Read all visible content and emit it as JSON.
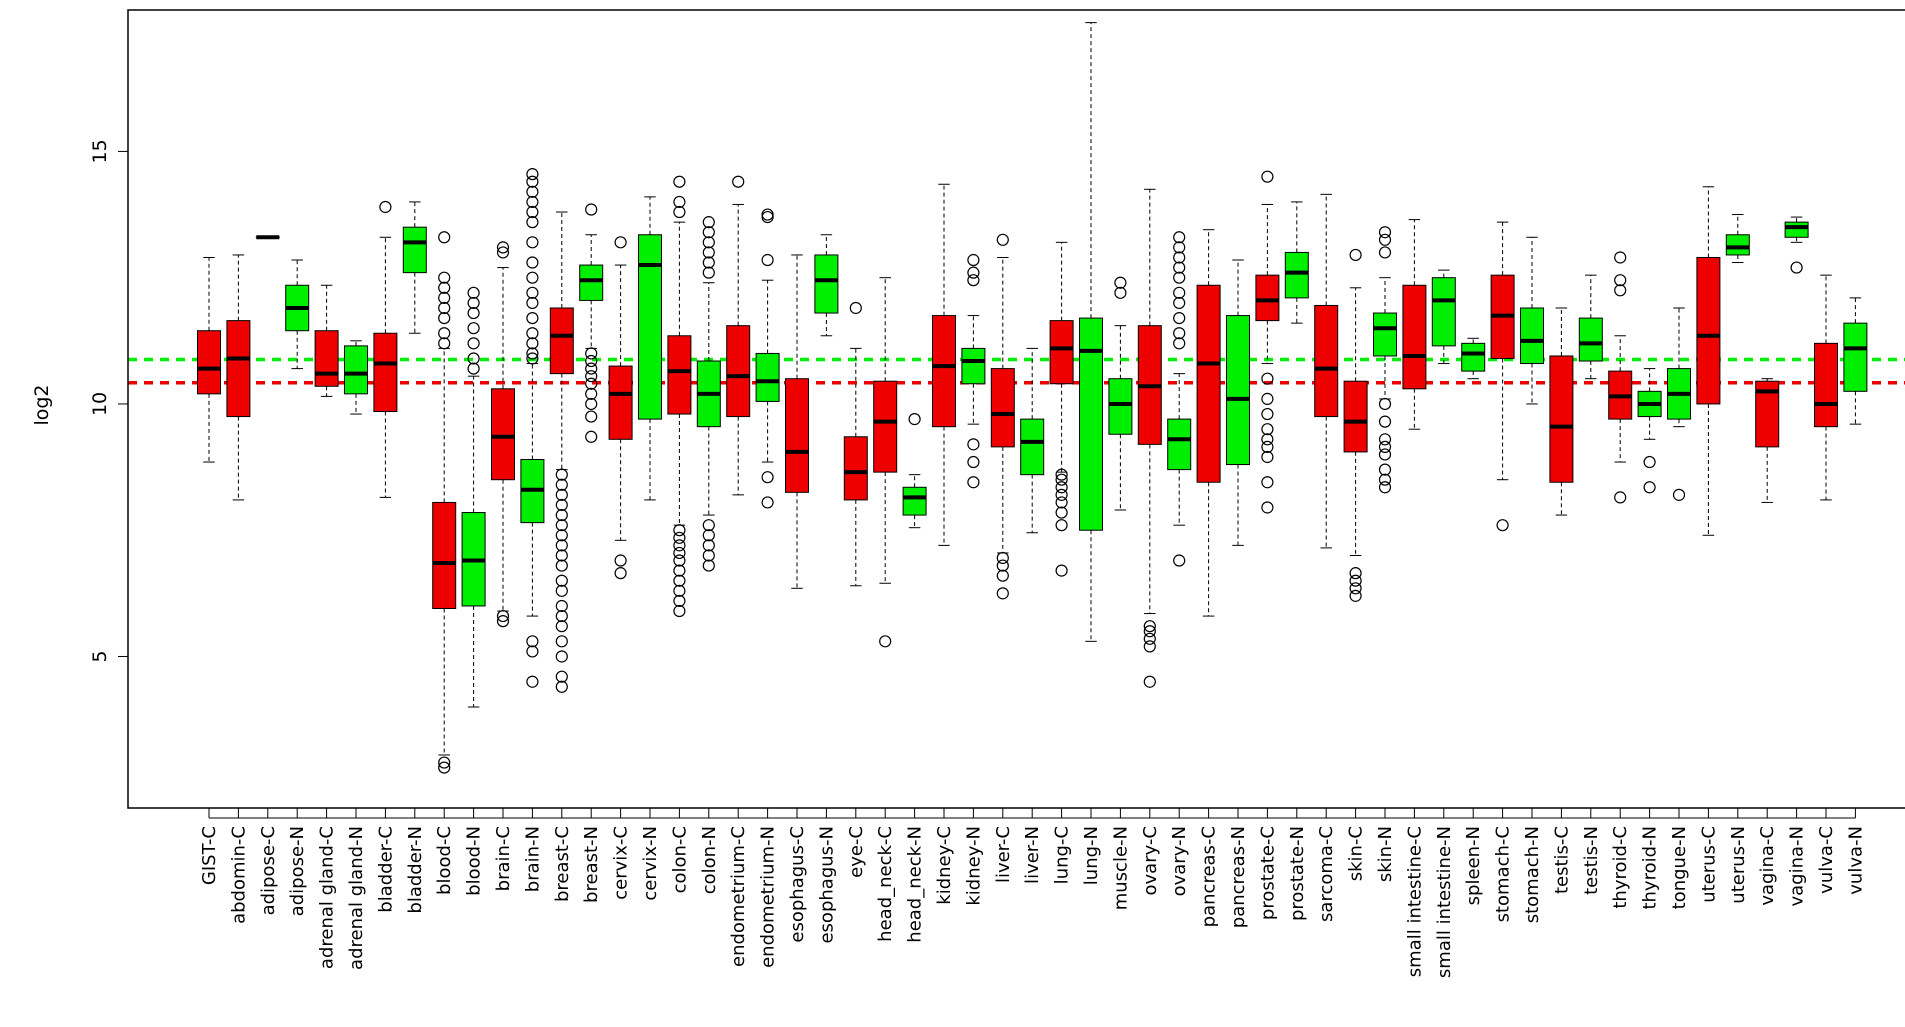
{
  "chart_data": {
    "type": "boxplot",
    "title": "",
    "xlabel": "",
    "ylabel": "log2",
    "ylim": [
      2,
      17.8
    ],
    "yticks": [
      5,
      10,
      15
    ],
    "grid": false,
    "legend": "none",
    "colors": {
      "C": "#ee0000",
      "N": "#00ee00"
    },
    "reference_lines": [
      {
        "value": 10.88,
        "color": "#00ee00",
        "style": "dashed"
      },
      {
        "value": 10.42,
        "color": "#ee0000",
        "style": "dashed"
      }
    ],
    "boxes": [
      {
        "label": "GIST-C",
        "group": "C",
        "q1": 10.2,
        "median": 10.7,
        "q3": 11.45,
        "whisker_low": 8.85,
        "whisker_high": 12.9,
        "outliers": []
      },
      {
        "label": "abdomin-C",
        "group": "C",
        "q1": 9.75,
        "median": 10.9,
        "q3": 11.65,
        "whisker_low": 8.1,
        "whisker_high": 12.95,
        "outliers": []
      },
      {
        "label": "adipose-C",
        "group": "C",
        "q1": 13.3,
        "median": 13.3,
        "q3": 13.3,
        "whisker_low": 13.3,
        "whisker_high": 13.3,
        "outliers": []
      },
      {
        "label": "adipose-N",
        "group": "N",
        "q1": 11.45,
        "median": 11.9,
        "q3": 12.35,
        "whisker_low": 10.7,
        "whisker_high": 12.85,
        "outliers": []
      },
      {
        "label": "adrenal gland-C",
        "group": "C",
        "q1": 10.35,
        "median": 10.6,
        "q3": 11.45,
        "whisker_low": 10.15,
        "whisker_high": 12.35,
        "outliers": []
      },
      {
        "label": "adrenal gland-N",
        "group": "N",
        "q1": 10.2,
        "median": 10.6,
        "q3": 11.15,
        "whisker_low": 9.8,
        "whisker_high": 11.25,
        "outliers": []
      },
      {
        "label": "bladder-C",
        "group": "C",
        "q1": 9.85,
        "median": 10.8,
        "q3": 11.4,
        "whisker_low": 8.15,
        "whisker_high": 13.3,
        "outliers": [
          13.9
        ]
      },
      {
        "label": "bladder-N",
        "group": "N",
        "q1": 12.6,
        "median": 13.2,
        "q3": 13.5,
        "whisker_low": 11.4,
        "whisker_high": 14.0,
        "outliers": []
      },
      {
        "label": "blood-C",
        "group": "C",
        "q1": 5.95,
        "median": 6.85,
        "q3": 8.05,
        "whisker_low": 3.05,
        "whisker_high": 11.1,
        "outliers": [
          2.8,
          2.9,
          11.2,
          11.4,
          11.7,
          11.9,
          12.1,
          12.3,
          12.5,
          13.3
        ]
      },
      {
        "label": "blood-N",
        "group": "N",
        "q1": 6.0,
        "median": 6.9,
        "q3": 7.85,
        "whisker_low": 4.0,
        "whisker_high": 10.55,
        "outliers": [
          10.7,
          10.9,
          11.2,
          11.5,
          11.8,
          12.0,
          12.2
        ]
      },
      {
        "label": "brain-C",
        "group": "C",
        "q1": 8.5,
        "median": 9.35,
        "q3": 10.3,
        "whisker_low": 5.9,
        "whisker_high": 12.7,
        "outliers": [
          5.7,
          5.8,
          13.0,
          13.1
        ]
      },
      {
        "label": "brain-N",
        "group": "N",
        "q1": 7.65,
        "median": 8.3,
        "q3": 8.9,
        "whisker_low": 5.8,
        "whisker_high": 10.8,
        "outliers": [
          4.5,
          5.1,
          5.3,
          10.9,
          11.0,
          11.2,
          11.4,
          11.7,
          12.0,
          12.2,
          12.5,
          12.8,
          13.2,
          13.6,
          13.8,
          14.0,
          14.2,
          14.4,
          14.55
        ]
      },
      {
        "label": "breast-C",
        "group": "C",
        "q1": 10.6,
        "median": 11.35,
        "q3": 11.9,
        "whisker_low": 8.7,
        "whisker_high": 13.8,
        "outliers": [
          4.4,
          4.6,
          5.0,
          5.3,
          5.6,
          5.8,
          6.0,
          6.3,
          6.5,
          6.8,
          7.0,
          7.2,
          7.4,
          7.6,
          7.8,
          8.0,
          8.2,
          8.4,
          8.6
        ]
      },
      {
        "label": "breast-N",
        "group": "N",
        "q1": 12.05,
        "median": 12.45,
        "q3": 12.75,
        "whisker_low": 11.1,
        "whisker_high": 13.35,
        "outliers": [
          9.35,
          9.75,
          10.0,
          10.2,
          10.4,
          10.55,
          10.7,
          10.85,
          11.0,
          13.85
        ]
      },
      {
        "label": "cervix-C",
        "group": "C",
        "q1": 9.3,
        "median": 10.2,
        "q3": 10.75,
        "whisker_low": 7.3,
        "whisker_high": 12.75,
        "outliers": [
          6.65,
          6.9,
          13.2
        ]
      },
      {
        "label": "cervix-N",
        "group": "N",
        "q1": 9.7,
        "median": 12.75,
        "q3": 13.35,
        "whisker_low": 8.1,
        "whisker_high": 14.1,
        "outliers": []
      },
      {
        "label": "colon-C",
        "group": "C",
        "q1": 9.8,
        "median": 10.65,
        "q3": 11.35,
        "whisker_low": 7.6,
        "whisker_high": 13.6,
        "outliers": [
          5.9,
          6.1,
          6.3,
          6.5,
          6.7,
          6.9,
          7.05,
          7.2,
          7.35,
          7.5,
          13.8,
          14.0,
          14.4
        ]
      },
      {
        "label": "colon-N",
        "group": "N",
        "q1": 9.55,
        "median": 10.2,
        "q3": 10.85,
        "whisker_low": 7.8,
        "whisker_high": 12.4,
        "outliers": [
          6.8,
          7.0,
          7.2,
          7.4,
          7.6,
          12.6,
          12.8,
          13.0,
          13.2,
          13.4,
          13.6
        ]
      },
      {
        "label": "endometrium-C",
        "group": "C",
        "q1": 9.75,
        "median": 10.55,
        "q3": 11.55,
        "whisker_low": 8.2,
        "whisker_high": 13.95,
        "outliers": [
          14.4
        ]
      },
      {
        "label": "endometrium-N",
        "group": "N",
        "q1": 10.05,
        "median": 10.45,
        "q3": 11.0,
        "whisker_low": 8.85,
        "whisker_high": 12.45,
        "outliers": [
          8.05,
          8.55,
          12.85,
          13.7,
          13.75
        ]
      },
      {
        "label": "esophagus-C",
        "group": "C",
        "q1": 8.25,
        "median": 9.05,
        "q3": 10.5,
        "whisker_low": 6.35,
        "whisker_high": 12.95,
        "outliers": []
      },
      {
        "label": "esophagus-N",
        "group": "N",
        "q1": 11.8,
        "median": 12.45,
        "q3": 12.95,
        "whisker_low": 11.35,
        "whisker_high": 13.35,
        "outliers": []
      },
      {
        "label": "eye-C",
        "group": "C",
        "q1": 8.1,
        "median": 8.65,
        "q3": 9.35,
        "whisker_low": 6.4,
        "whisker_high": 11.1,
        "outliers": [
          11.9
        ]
      },
      {
        "label": "head_neck-C",
        "group": "C",
        "q1": 8.65,
        "median": 9.65,
        "q3": 10.45,
        "whisker_low": 6.45,
        "whisker_high": 12.5,
        "outliers": [
          5.3
        ]
      },
      {
        "label": "head_neck-N",
        "group": "N",
        "q1": 7.8,
        "median": 8.15,
        "q3": 8.35,
        "whisker_low": 7.55,
        "whisker_high": 8.6,
        "outliers": [
          9.7
        ]
      },
      {
        "label": "kidney-C",
        "group": "C",
        "q1": 9.55,
        "median": 10.75,
        "q3": 11.75,
        "whisker_low": 7.2,
        "whisker_high": 14.35,
        "outliers": []
      },
      {
        "label": "kidney-N",
        "group": "N",
        "q1": 10.4,
        "median": 10.85,
        "q3": 11.1,
        "whisker_low": 9.6,
        "whisker_high": 11.75,
        "outliers": [
          8.45,
          8.85,
          9.2,
          12.45,
          12.6,
          12.85
        ]
      },
      {
        "label": "liver-C",
        "group": "C",
        "q1": 9.15,
        "median": 9.8,
        "q3": 10.7,
        "whisker_low": 7.05,
        "whisker_high": 12.9,
        "outliers": [
          6.25,
          6.6,
          6.8,
          6.95,
          13.25
        ]
      },
      {
        "label": "liver-N",
        "group": "N",
        "q1": 8.6,
        "median": 9.25,
        "q3": 9.7,
        "whisker_low": 7.45,
        "whisker_high": 11.1,
        "outliers": []
      },
      {
        "label": "lung-C",
        "group": "C",
        "q1": 10.4,
        "median": 11.1,
        "q3": 11.65,
        "whisker_low": 8.65,
        "whisker_high": 13.2,
        "outliers": [
          6.7,
          7.6,
          7.85,
          8.05,
          8.2,
          8.35,
          8.5,
          8.6
        ]
      },
      {
        "label": "lung-N",
        "group": "N",
        "q1": 7.5,
        "median": 11.05,
        "q3": 11.7,
        "whisker_low": 5.3,
        "whisker_high": 17.55,
        "outliers": []
      },
      {
        "label": "muscle-N",
        "group": "N",
        "q1": 9.4,
        "median": 10.0,
        "q3": 10.5,
        "whisker_low": 7.9,
        "whisker_high": 11.55,
        "outliers": [
          12.2,
          12.4
        ]
      },
      {
        "label": "ovary-C",
        "group": "C",
        "q1": 9.2,
        "median": 10.35,
        "q3": 11.55,
        "whisker_low": 5.85,
        "whisker_high": 14.25,
        "outliers": [
          4.5,
          5.2,
          5.35,
          5.5,
          5.6
        ]
      },
      {
        "label": "ovary-N",
        "group": "N",
        "q1": 8.7,
        "median": 9.3,
        "q3": 9.7,
        "whisker_low": 7.6,
        "whisker_high": 10.6,
        "outliers": [
          6.9,
          11.2,
          11.4,
          11.7,
          12.0,
          12.2,
          12.5,
          12.7,
          12.9,
          13.1,
          13.3
        ]
      },
      {
        "label": "pancreas-C",
        "group": "C",
        "q1": 8.45,
        "median": 10.8,
        "q3": 12.35,
        "whisker_low": 5.8,
        "whisker_high": 13.45,
        "outliers": []
      },
      {
        "label": "pancreas-N",
        "group": "N",
        "q1": 8.8,
        "median": 10.1,
        "q3": 11.75,
        "whisker_low": 7.2,
        "whisker_high": 12.85,
        "outliers": []
      },
      {
        "label": "prostate-C",
        "group": "C",
        "q1": 11.65,
        "median": 12.05,
        "q3": 12.55,
        "whisker_low": 10.8,
        "whisker_high": 13.95,
        "outliers": [
          7.95,
          8.45,
          8.95,
          9.15,
          9.3,
          9.5,
          9.8,
          10.1,
          10.5,
          14.5
        ]
      },
      {
        "label": "prostate-N",
        "group": "N",
        "q1": 12.1,
        "median": 12.6,
        "q3": 13.0,
        "whisker_low": 11.6,
        "whisker_high": 14.0,
        "outliers": []
      },
      {
        "label": "sarcoma-C",
        "group": "C",
        "q1": 9.75,
        "median": 10.7,
        "q3": 11.95,
        "whisker_low": 7.15,
        "whisker_high": 14.15,
        "outliers": []
      },
      {
        "label": "skin-C",
        "group": "C",
        "q1": 9.05,
        "median": 9.65,
        "q3": 10.45,
        "whisker_low": 7.0,
        "whisker_high": 12.3,
        "outliers": [
          6.2,
          6.35,
          6.5,
          6.65,
          12.95
        ]
      },
      {
        "label": "skin-N",
        "group": "N",
        "q1": 10.95,
        "median": 11.5,
        "q3": 11.8,
        "whisker_low": 10.1,
        "whisker_high": 12.5,
        "outliers": [
          8.35,
          8.5,
          8.7,
          9.0,
          9.15,
          9.3,
          9.65,
          10.0,
          13.0,
          13.25,
          13.4
        ]
      },
      {
        "label": "small intestine-C",
        "group": "C",
        "q1": 10.3,
        "median": 10.95,
        "q3": 12.35,
        "whisker_low": 9.5,
        "whisker_high": 13.65,
        "outliers": []
      },
      {
        "label": "small intestine-N",
        "group": "N",
        "q1": 11.15,
        "median": 12.05,
        "q3": 12.5,
        "whisker_low": 10.8,
        "whisker_high": 12.65,
        "outliers": []
      },
      {
        "label": "spleen-N",
        "group": "N",
        "q1": 10.65,
        "median": 11.0,
        "q3": 11.2,
        "whisker_low": 10.5,
        "whisker_high": 11.3,
        "outliers": []
      },
      {
        "label": "stomach-C",
        "group": "C",
        "q1": 10.9,
        "median": 11.75,
        "q3": 12.55,
        "whisker_low": 8.5,
        "whisker_high": 13.6,
        "outliers": [
          7.6
        ]
      },
      {
        "label": "stomach-N",
        "group": "N",
        "q1": 10.8,
        "median": 11.25,
        "q3": 11.9,
        "whisker_low": 10.0,
        "whisker_high": 13.3,
        "outliers": []
      },
      {
        "label": "testis-C",
        "group": "C",
        "q1": 8.45,
        "median": 9.55,
        "q3": 10.95,
        "whisker_low": 7.8,
        "whisker_high": 11.9,
        "outliers": []
      },
      {
        "label": "testis-N",
        "group": "N",
        "q1": 10.85,
        "median": 11.2,
        "q3": 11.7,
        "whisker_low": 10.5,
        "whisker_high": 12.55,
        "outliers": []
      },
      {
        "label": "thyroid-C",
        "group": "C",
        "q1": 9.7,
        "median": 10.15,
        "q3": 10.65,
        "whisker_low": 8.85,
        "whisker_high": 11.35,
        "outliers": [
          8.15,
          12.25,
          12.45,
          12.9
        ]
      },
      {
        "label": "thyroid-N",
        "group": "N",
        "q1": 9.75,
        "median": 10.0,
        "q3": 10.25,
        "whisker_low": 9.3,
        "whisker_high": 10.7,
        "outliers": [
          8.35,
          8.85
        ]
      },
      {
        "label": "tongue-N",
        "group": "N",
        "q1": 9.7,
        "median": 10.2,
        "q3": 10.7,
        "whisker_low": 9.55,
        "whisker_high": 11.9,
        "outliers": [
          8.2
        ]
      },
      {
        "label": "uterus-C",
        "group": "C",
        "q1": 10.0,
        "median": 11.35,
        "q3": 12.9,
        "whisker_low": 7.4,
        "whisker_high": 14.3,
        "outliers": []
      },
      {
        "label": "uterus-N",
        "group": "N",
        "q1": 12.95,
        "median": 13.1,
        "q3": 13.35,
        "whisker_low": 12.8,
        "whisker_high": 13.75,
        "outliers": []
      },
      {
        "label": "vagina-C",
        "group": "C",
        "q1": 9.15,
        "median": 10.25,
        "q3": 10.45,
        "whisker_low": 8.05,
        "whisker_high": 10.5,
        "outliers": []
      },
      {
        "label": "vagina-N",
        "group": "N",
        "q1": 13.3,
        "median": 13.5,
        "q3": 13.6,
        "whisker_low": 13.2,
        "whisker_high": 13.7,
        "outliers": [
          12.7
        ]
      },
      {
        "label": "vulva-C",
        "group": "C",
        "q1": 9.55,
        "median": 10.0,
        "q3": 11.2,
        "whisker_low": 8.1,
        "whisker_high": 12.55,
        "outliers": []
      },
      {
        "label": "vulva-N",
        "group": "N",
        "q1": 10.25,
        "median": 11.1,
        "q3": 11.6,
        "whisker_low": 9.6,
        "whisker_high": 12.1,
        "outliers": []
      }
    ]
  }
}
